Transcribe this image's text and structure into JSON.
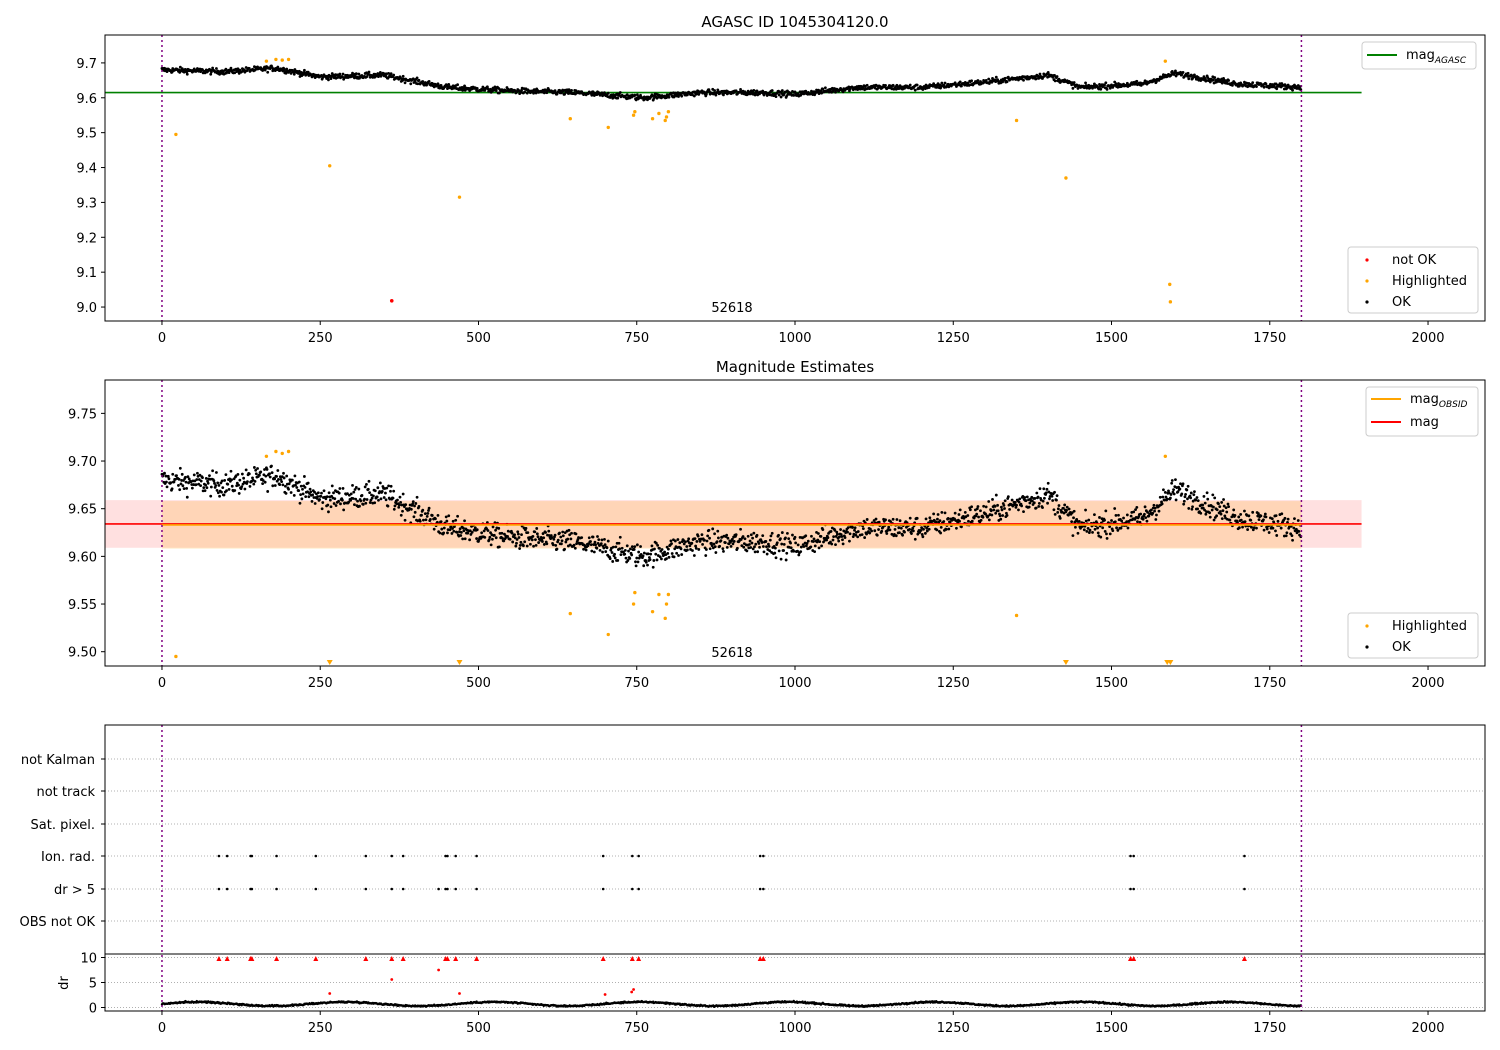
{
  "chart_data": [
    {
      "type": "scatter",
      "title": "AGASC ID 1045304120.0",
      "annotation": "52618",
      "xlim": [
        -90,
        2090
      ],
      "ylim": [
        8.96,
        9.78
      ],
      "x_ticks": [
        0,
        250,
        500,
        750,
        1000,
        1250,
        1500,
        1750,
        2000
      ],
      "y_ticks": [
        9.0,
        9.1,
        9.2,
        9.3,
        9.4,
        9.5,
        9.6,
        9.7
      ],
      "vlines": [
        0,
        1800
      ],
      "hline": {
        "y": 9.615,
        "x_range": [
          0,
          1895
        ],
        "color": "#008000",
        "label": "mag",
        "label_sub": "AGASC"
      },
      "legend_lines": [
        {
          "label": "mag",
          "sub": "AGASC",
          "color": "#008000"
        }
      ],
      "legend_markers": [
        {
          "label": "not OK",
          "color": "#ff0000"
        },
        {
          "label": "Highlighted",
          "color": "#ffa500"
        },
        {
          "label": "OK",
          "color": "#000000"
        }
      ],
      "ok_trend": {
        "x": [
          0,
          100,
          180,
          250,
          350,
          450,
          550,
          650,
          760,
          850,
          950,
          1000,
          1100,
          1200,
          1300,
          1400,
          1450,
          1550,
          1600,
          1700,
          1800
        ],
        "y": [
          9.68,
          9.675,
          9.685,
          9.66,
          9.665,
          9.63,
          9.62,
          9.615,
          9.6,
          9.615,
          9.615,
          9.61,
          9.63,
          9.63,
          9.645,
          9.665,
          9.63,
          9.64,
          9.67,
          9.64,
          9.63
        ]
      },
      "ok_count": 1800,
      "ok_noise": 0.008,
      "highlighted": {
        "x": [
          22,
          165,
          180,
          190,
          200,
          265,
          470,
          645,
          705,
          745,
          747,
          775,
          785,
          795,
          797,
          800,
          1350,
          1428,
          1585,
          1592,
          1593
        ],
        "y": [
          9.495,
          9.705,
          9.71,
          9.708,
          9.71,
          9.405,
          9.315,
          9.54,
          9.515,
          9.55,
          9.56,
          9.54,
          9.555,
          9.535,
          9.545,
          9.56,
          9.535,
          9.37,
          9.705,
          9.065,
          9.015
        ]
      },
      "not_ok": {
        "x": [
          363
        ],
        "y": [
          9.018
        ]
      }
    },
    {
      "type": "scatter",
      "title": "Magnitude Estimates",
      "annotation": "52618",
      "xlim": [
        -90,
        2090
      ],
      "ylim": [
        9.485,
        9.785
      ],
      "x_ticks": [
        0,
        250,
        500,
        750,
        1000,
        1250,
        1500,
        1750,
        2000
      ],
      "y_ticks": [
        9.5,
        9.55,
        9.6,
        9.65,
        9.7,
        9.75
      ],
      "vlines": [
        0,
        1800
      ],
      "mag_obsid": {
        "y": 9.633,
        "band": [
          9.608,
          9.658
        ],
        "x_range": [
          0,
          1800
        ],
        "color": "#ffa500"
      },
      "mag": {
        "y": 9.634,
        "band": [
          9.609,
          9.659
        ],
        "x_range": [
          -90,
          1895
        ],
        "color": "#ff0000"
      },
      "legend_lines": [
        {
          "label": "mag",
          "sub": "OBSID",
          "color": "#ffa500"
        },
        {
          "label": "mag",
          "sub": "",
          "color": "#ff0000"
        }
      ],
      "legend_markers": [
        {
          "label": "Highlighted",
          "color": "#ffa500"
        },
        {
          "label": "OK",
          "color": "#000000"
        }
      ],
      "highlighted": {
        "x": [
          22,
          165,
          180,
          190,
          200,
          645,
          705,
          745,
          747,
          775,
          785,
          795,
          797,
          800,
          1350,
          1585
        ],
        "y": [
          9.495,
          9.705,
          9.71,
          9.708,
          9.71,
          9.54,
          9.518,
          9.55,
          9.562,
          9.542,
          9.56,
          9.535,
          9.55,
          9.56,
          9.538,
          9.705
        ]
      },
      "below_range": {
        "x": [
          265,
          470,
          1428,
          1588,
          1593
        ],
        "y": [
          9.49,
          9.49,
          9.49,
          9.49,
          9.49
        ]
      }
    },
    {
      "type": "scatter",
      "title": "",
      "xlim": [
        -90,
        2090
      ],
      "x_ticks": [
        0,
        250,
        500,
        750,
        1000,
        1250,
        1500,
        1750,
        2000
      ],
      "vlines": [
        0,
        1800
      ],
      "flag_rows": [
        "not Kalman",
        "not track",
        "Sat. pixel.",
        "Ion. rad.",
        "dr > 5",
        "OBS not OK"
      ],
      "flag_events_x": [
        90,
        103,
        140,
        142,
        181,
        243,
        322,
        363,
        381,
        437,
        448,
        451,
        464,
        497,
        697,
        743,
        753,
        945,
        950,
        1530,
        1535,
        1710
      ],
      "ion_rad_x": [
        90,
        103,
        140,
        142,
        181,
        243,
        322,
        363,
        381,
        448,
        451,
        464,
        497,
        697,
        743,
        753,
        945,
        950,
        1530,
        1535,
        1710
      ],
      "dr_gt5_x": [
        90,
        103,
        140,
        142,
        181,
        243,
        322,
        363,
        381,
        437,
        448,
        451,
        464,
        497,
        697,
        743,
        753,
        945,
        950,
        1530,
        1535,
        1710
      ],
      "dr_panel": {
        "ylabel": "dr",
        "ylim": [
          -0.3,
          10.3
        ],
        "y_ticks": [
          0,
          5,
          10
        ],
        "big_x": [
          90,
          103,
          140,
          142,
          181,
          243,
          322,
          363,
          381,
          448,
          451,
          464,
          497,
          697,
          743,
          753,
          945,
          950,
          1530,
          1535,
          1710
        ],
        "mid": {
          "x": [
            265,
            363,
            437,
            470,
            700,
            742,
            745
          ],
          "y": [
            2.8,
            5.6,
            7.5,
            2.8,
            2.6,
            3.1,
            3.6
          ]
        },
        "baseline_range": [
          0.2,
          1.2
        ]
      }
    }
  ]
}
